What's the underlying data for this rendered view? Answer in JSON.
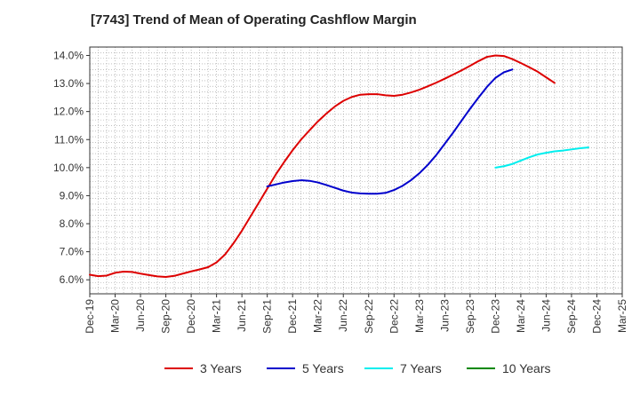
{
  "chart_data": {
    "type": "line",
    "title": "[7743]  Trend of Mean of Operating Cashflow Margin",
    "xlabel": "",
    "ylabel": "",
    "x_ticks": [
      "Dec-19",
      "Mar-20",
      "Jun-20",
      "Sep-20",
      "Dec-20",
      "Mar-21",
      "Jun-21",
      "Sep-21",
      "Dec-21",
      "Mar-22",
      "Jun-22",
      "Sep-22",
      "Dec-22",
      "Mar-23",
      "Jun-23",
      "Sep-23",
      "Dec-23",
      "Mar-24",
      "Jun-24",
      "Sep-24",
      "Dec-24",
      "Mar-25"
    ],
    "y_ticks": [
      "6.0%",
      "7.0%",
      "8.0%",
      "9.0%",
      "10.0%",
      "11.0%",
      "12.0%",
      "13.0%",
      "14.0%"
    ],
    "ylim": [
      5.5,
      14.3
    ],
    "grid": true,
    "legend_position": "bottom",
    "series": [
      {
        "name": "3 Years",
        "color": "#dd0000",
        "points": [
          [
            "Dec-19",
            6.18
          ],
          [
            "Jan-20",
            6.13
          ],
          [
            "Feb-20",
            6.15
          ],
          [
            "Mar-20",
            6.25
          ],
          [
            "Apr-20",
            6.29
          ],
          [
            "May-20",
            6.28
          ],
          [
            "Jun-20",
            6.22
          ],
          [
            "Jul-20",
            6.17
          ],
          [
            "Aug-20",
            6.12
          ],
          [
            "Sep-20",
            6.1
          ],
          [
            "Oct-20",
            6.14
          ],
          [
            "Nov-20",
            6.22
          ],
          [
            "Dec-20",
            6.3
          ],
          [
            "Jan-21",
            6.37
          ],
          [
            "Feb-21",
            6.45
          ],
          [
            "Mar-21",
            6.62
          ],
          [
            "Apr-21",
            6.9
          ],
          [
            "May-21",
            7.3
          ],
          [
            "Jun-21",
            7.75
          ],
          [
            "Jul-21",
            8.25
          ],
          [
            "Aug-21",
            8.75
          ],
          [
            "Sep-21",
            9.25
          ],
          [
            "Oct-21",
            9.75
          ],
          [
            "Nov-21",
            10.2
          ],
          [
            "Dec-21",
            10.62
          ],
          [
            "Jan-22",
            11.0
          ],
          [
            "Feb-22",
            11.33
          ],
          [
            "Mar-22",
            11.65
          ],
          [
            "Apr-22",
            11.93
          ],
          [
            "May-22",
            12.18
          ],
          [
            "Jun-22",
            12.38
          ],
          [
            "Jul-22",
            12.52
          ],
          [
            "Aug-22",
            12.6
          ],
          [
            "Sep-22",
            12.62
          ],
          [
            "Oct-22",
            12.62
          ],
          [
            "Nov-22",
            12.58
          ],
          [
            "Dec-22",
            12.56
          ],
          [
            "Jan-23",
            12.6
          ],
          [
            "Feb-23",
            12.68
          ],
          [
            "Mar-23",
            12.78
          ],
          [
            "Apr-23",
            12.9
          ],
          [
            "May-23",
            13.03
          ],
          [
            "Jun-23",
            13.17
          ],
          [
            "Jul-23",
            13.32
          ],
          [
            "Aug-23",
            13.47
          ],
          [
            "Sep-23",
            13.63
          ],
          [
            "Oct-23",
            13.8
          ],
          [
            "Nov-23",
            13.95
          ],
          [
            "Dec-23",
            14.0
          ],
          [
            "Jan-24",
            13.98
          ],
          [
            "Feb-24",
            13.87
          ],
          [
            "Mar-24",
            13.73
          ],
          [
            "Apr-24",
            13.58
          ],
          [
            "May-24",
            13.42
          ],
          [
            "Jun-24",
            13.22
          ],
          [
            "Jul-24",
            13.02
          ]
        ]
      },
      {
        "name": "5 Years",
        "color": "#0000cc",
        "points": [
          [
            "Sep-21",
            9.33
          ],
          [
            "Oct-21",
            9.4
          ],
          [
            "Nov-21",
            9.47
          ],
          [
            "Dec-21",
            9.52
          ],
          [
            "Jan-22",
            9.55
          ],
          [
            "Feb-22",
            9.53
          ],
          [
            "Mar-22",
            9.47
          ],
          [
            "Apr-22",
            9.38
          ],
          [
            "May-22",
            9.28
          ],
          [
            "Jun-22",
            9.18
          ],
          [
            "Jul-22",
            9.11
          ],
          [
            "Aug-22",
            9.08
          ],
          [
            "Sep-22",
            9.07
          ],
          [
            "Oct-22",
            9.07
          ],
          [
            "Nov-22",
            9.1
          ],
          [
            "Dec-22",
            9.2
          ],
          [
            "Jan-23",
            9.35
          ],
          [
            "Feb-23",
            9.55
          ],
          [
            "Mar-23",
            9.8
          ],
          [
            "Apr-23",
            10.1
          ],
          [
            "May-23",
            10.45
          ],
          [
            "Jun-23",
            10.85
          ],
          [
            "Jul-23",
            11.25
          ],
          [
            "Aug-23",
            11.68
          ],
          [
            "Sep-23",
            12.1
          ],
          [
            "Oct-23",
            12.5
          ],
          [
            "Nov-23",
            12.88
          ],
          [
            "Dec-23",
            13.2
          ],
          [
            "Jan-24",
            13.4
          ],
          [
            "Feb-24",
            13.5
          ]
        ]
      },
      {
        "name": "7 Years",
        "color": "#00eeee",
        "points": [
          [
            "Dec-23",
            10.0
          ],
          [
            "Jan-24",
            10.05
          ],
          [
            "Feb-24",
            10.13
          ],
          [
            "Mar-24",
            10.25
          ],
          [
            "Apr-24",
            10.37
          ],
          [
            "May-24",
            10.47
          ],
          [
            "Jun-24",
            10.53
          ],
          [
            "Jul-24",
            10.58
          ],
          [
            "Aug-24",
            10.61
          ],
          [
            "Sep-24",
            10.65
          ],
          [
            "Oct-24",
            10.69
          ],
          [
            "Nov-24",
            10.72
          ]
        ]
      },
      {
        "name": "10 Years",
        "color": "#008800",
        "points": []
      }
    ]
  }
}
